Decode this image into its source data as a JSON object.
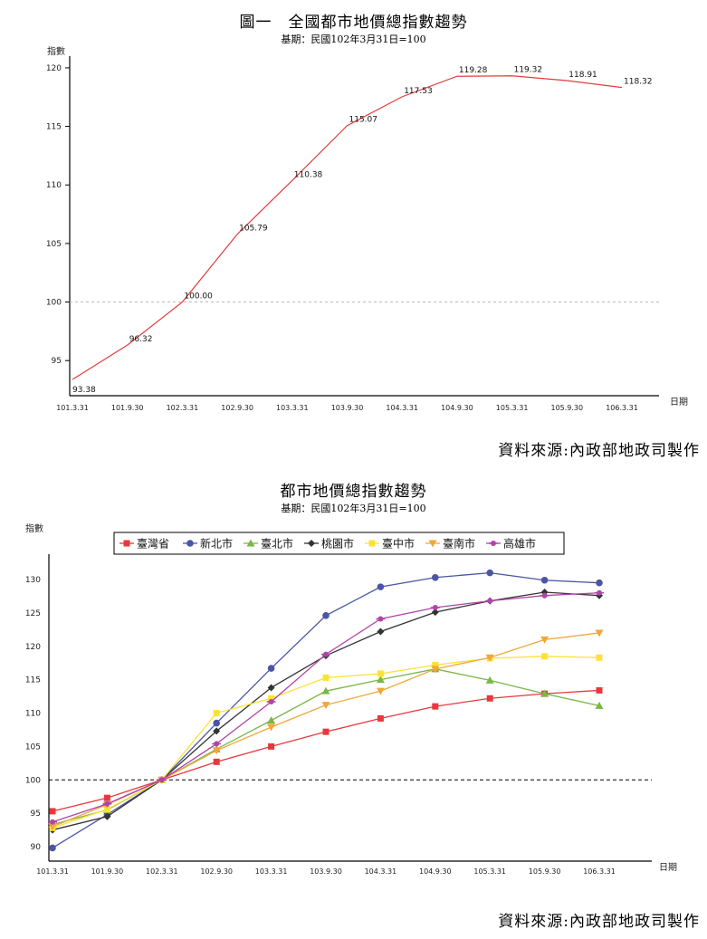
{
  "chart_data": [
    {
      "type": "line",
      "title": "圖一　全國都市地價總指數趨勢",
      "subtitle": "基期：民國102年3月31日=100",
      "ylabel": "指數",
      "xlabel": "日期",
      "ylim": [
        92,
        121
      ],
      "yticks": [
        95,
        100,
        105,
        110,
        115,
        120
      ],
      "categories": [
        "101.3.31",
        "101.9.30",
        "102.3.31",
        "102.9.30",
        "103.3.31",
        "103.9.30",
        "104.3.31",
        "104.9.30",
        "105.3.31",
        "105.9.30",
        "106.3.31"
      ],
      "reference_line": 100,
      "color": "#e03c3c",
      "series": [
        {
          "values": [
            93.38,
            96.32,
            100.0,
            105.79,
            110.38,
            115.07,
            117.53,
            119.28,
            119.32,
            118.91,
            118.32
          ],
          "labels": [
            "93.38",
            "96.32",
            "100.00",
            "105.79",
            "110.38",
            "115.07",
            "117.53",
            "119.28",
            "119.32",
            "118.91",
            "118.32"
          ]
        }
      ]
    },
    {
      "type": "line",
      "title": "都市地價總指數趨勢",
      "subtitle": "基期：民國102年3月31日=100",
      "ylabel": "指數",
      "xlabel": "日期",
      "ylim": [
        88,
        133
      ],
      "yticks": [
        90,
        95,
        100,
        105,
        110,
        115,
        120,
        125,
        130
      ],
      "categories": [
        "101.3.31",
        "101.9.30",
        "102.3.31",
        "102.9.30",
        "103.3.31",
        "103.9.30",
        "104.3.31",
        "104.9.30",
        "105.3.31",
        "105.9.30",
        "106.3.31"
      ],
      "reference_line": 100,
      "legend_position": "top",
      "series": [
        {
          "name": "臺灣省",
          "color": "#e8383d",
          "marker": "square",
          "values": [
            95.3,
            97.3,
            100.0,
            102.7,
            105.0,
            107.2,
            109.2,
            111.0,
            112.2,
            112.9,
            113.4
          ]
        },
        {
          "name": "新北市",
          "color": "#4b55a6",
          "marker": "circle",
          "values": [
            89.8,
            94.8,
            100.0,
            108.5,
            116.7,
            124.6,
            128.9,
            130.3,
            131.0,
            129.9,
            129.5
          ]
        },
        {
          "name": "臺北市",
          "color": "#7ab648",
          "marker": "triangle",
          "values": [
            93.3,
            95.5,
            100.0,
            104.6,
            108.9,
            113.3,
            115.0,
            116.6,
            114.9,
            112.9,
            111.1
          ]
        },
        {
          "name": "桃園市",
          "color": "#333333",
          "marker": "diamond",
          "values": [
            92.5,
            94.5,
            100.0,
            107.3,
            113.8,
            118.6,
            122.2,
            125.1,
            126.8,
            128.1,
            127.6
          ]
        },
        {
          "name": "臺中市",
          "color": "#ffe135",
          "marker": "square",
          "values": [
            92.8,
            95.6,
            100.0,
            110.0,
            112.2,
            115.3,
            115.9,
            117.2,
            118.2,
            118.5,
            118.3
          ]
        },
        {
          "name": "臺南市",
          "color": "#f0a838",
          "marker": "down-triangle",
          "values": [
            93.0,
            96.3,
            100.0,
            104.4,
            107.9,
            111.2,
            113.3,
            116.6,
            118.3,
            121.0,
            122.0
          ]
        },
        {
          "name": "高雄市",
          "color": "#b044a8",
          "marker": "dash-circle",
          "values": [
            93.7,
            96.4,
            100.0,
            105.4,
            111.7,
            118.8,
            124.1,
            125.8,
            126.8,
            127.6,
            128.0
          ]
        }
      ]
    }
  ],
  "source_text_1": "資料來源:內政部地政司製作",
  "source_text_2": "資料來源:內政部地政司製作"
}
